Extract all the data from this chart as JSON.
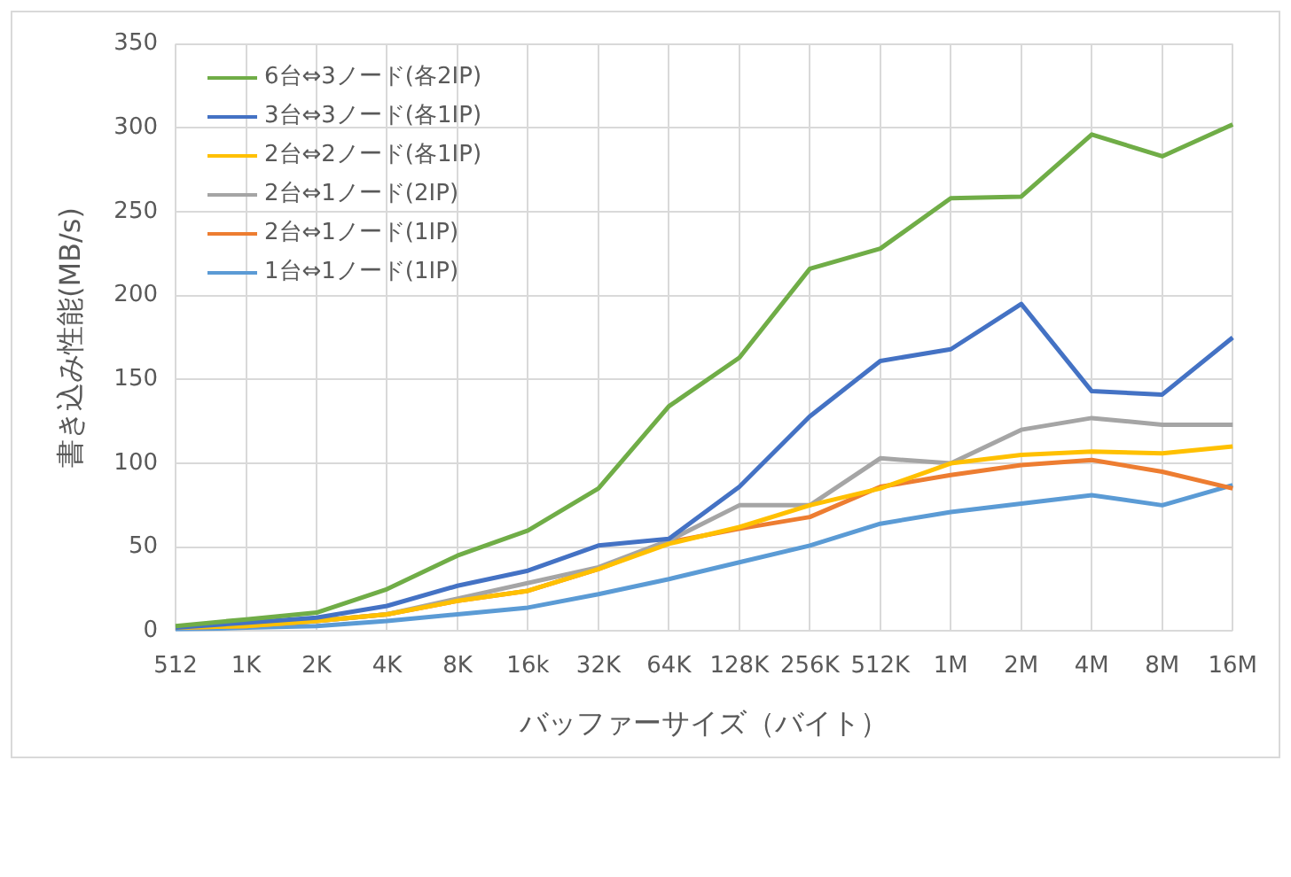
{
  "chart_data": {
    "type": "line",
    "xlabel": "バッファーサイズ（バイト）",
    "ylabel": "書き込み性能(MB/s)",
    "categories": [
      "512",
      "1K",
      "2K",
      "4K",
      "8K",
      "16k",
      "32K",
      "64K",
      "128K",
      "256K",
      "512K",
      "1M",
      "2M",
      "4M",
      "8M",
      "16M"
    ],
    "series": [
      {
        "name": "6台⇔3ノード(各2IP)",
        "color": "#70ad47",
        "values": [
          3,
          7,
          11,
          25,
          45,
          60,
          85,
          134,
          163,
          216,
          228,
          258,
          259,
          296,
          283,
          302
        ]
      },
      {
        "name": "3台⇔3ノード(各1IP)",
        "color": "#4472c4",
        "values": [
          2,
          5,
          8,
          15,
          27,
          36,
          51,
          55,
          86,
          128,
          161,
          168,
          195,
          143,
          141,
          175
        ]
      },
      {
        "name": "2台⇔2ノード(各1IP)",
        "color": "#ffc000",
        "values": [
          2,
          3,
          6,
          10,
          18,
          24,
          37,
          52,
          62,
          75,
          85,
          100,
          105,
          107,
          106,
          110
        ]
      },
      {
        "name": "2台⇔1ノード(2IP)",
        "color": "#a5a5a5",
        "values": [
          2,
          3,
          6,
          10,
          null,
          null,
          38,
          54,
          75,
          75,
          103,
          100,
          120,
          127,
          123,
          123
        ]
      },
      {
        "name": "2台⇔1ノード(1IP)",
        "color": "#ed7d31",
        "values": [
          2,
          3,
          6,
          10,
          18,
          24,
          37,
          53,
          61,
          68,
          86,
          93,
          99,
          102,
          95,
          85
        ]
      },
      {
        "name": "1台⇔1ノード(1IP)",
        "color": "#5b9bd5",
        "values": [
          1,
          2,
          3,
          6,
          10,
          14,
          22,
          31,
          41,
          51,
          64,
          71,
          76,
          81,
          75,
          87
        ]
      }
    ],
    "ylim": [
      0,
      350
    ],
    "yticks": [
      0,
      50,
      100,
      150,
      200,
      250,
      300,
      350
    ],
    "grid": true,
    "legend": "top left",
    "marker": "none",
    "line_style": "solid"
  }
}
